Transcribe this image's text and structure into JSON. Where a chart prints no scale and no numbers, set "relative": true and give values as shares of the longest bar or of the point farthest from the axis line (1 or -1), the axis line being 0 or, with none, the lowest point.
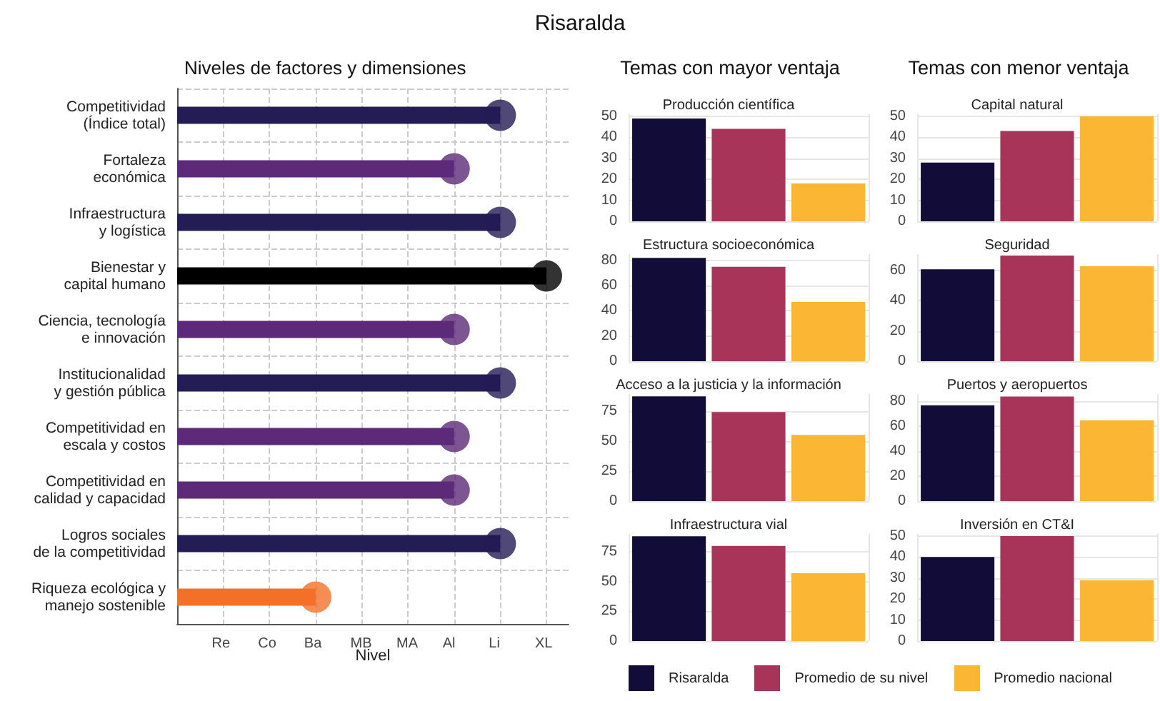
{
  "chart_data": [
    {
      "type": "lollipop",
      "orientation": "horizontal",
      "title": "Risaralda",
      "subtitle": "Niveles de factores y dimensiones",
      "xlabel": "Nivel",
      "categories": [
        "Competitividad\n(Índice total)",
        "Fortaleza\neconómica",
        "Infraestructura\ny logística",
        "Bienestar y\ncapital humano",
        "Ciencia, tecnología\ne innovación",
        "Institucionalidad\ny gestión pública",
        "Competitividad en\nescala y costos",
        "Competitividad en\ncalidad y capacidad",
        "Logros sociales\nde la competitividad",
        "Riqueza ecológica y\nmanejo sostenible"
      ],
      "values": [
        0.875,
        0.75,
        0.875,
        1,
        0.75,
        0.875,
        0.75,
        0.75,
        0.875,
        0.375
      ],
      "relative": true,
      "colors": [
        "#241c55",
        "#5c2a78",
        "#241c55",
        "#000000",
        "#5c2a78",
        "#241c55",
        "#5c2a78",
        "#5c2a78",
        "#241c55",
        "#f37029"
      ],
      "annotations": [
        "Re",
        "Co",
        "Ba",
        "MB",
        "MA",
        "Al",
        "Li",
        "XL"
      ],
      "marker": "circle",
      "grid": true
    },
    {
      "type": "bar",
      "title": "Temas con mayor ventaja",
      "subtitle": "Producción científica",
      "categories": [
        null
      ],
      "series": [
        {
          "color": "#120c38",
          "values": [
            49
          ]
        },
        {
          "color": "#a8345a",
          "values": [
            44
          ]
        },
        {
          "color": "#fbb634",
          "values": [
            18
          ]
        }
      ],
      "ylim": [
        0,
        51
      ],
      "yticks": [
        0,
        10,
        20,
        30,
        40,
        50
      ],
      "grid": true
    },
    {
      "type": "bar",
      "title": "Estructura socioeconómica",
      "categories": [
        null
      ],
      "series": [
        {
          "color": "#120c38",
          "values": [
            82
          ]
        },
        {
          "color": "#a8345a",
          "values": [
            75
          ]
        },
        {
          "color": "#fbb634",
          "values": [
            47
          ]
        }
      ],
      "ylim": [
        0,
        85
      ],
      "yticks": [
        0,
        20,
        40,
        60,
        80
      ],
      "grid": true
    },
    {
      "type": "bar",
      "title": "Acceso a la justicia y la información",
      "categories": [
        null
      ],
      "series": [
        {
          "color": "#120c38",
          "values": [
            87
          ]
        },
        {
          "color": "#a8345a",
          "values": [
            74
          ]
        },
        {
          "color": "#fbb634",
          "values": [
            55
          ]
        }
      ],
      "ylim": [
        0,
        89
      ],
      "yticks": [
        0,
        25,
        50,
        75
      ],
      "grid": true
    },
    {
      "type": "bar",
      "title": "Infraestructura vial",
      "categories": [
        null
      ],
      "series": [
        {
          "color": "#120c38",
          "values": [
            88
          ]
        },
        {
          "color": "#a8345a",
          "values": [
            80
          ]
        },
        {
          "color": "#fbb634",
          "values": [
            57
          ]
        }
      ],
      "ylim": [
        0,
        90
      ],
      "yticks": [
        0,
        25,
        50,
        75
      ],
      "grid": true
    },
    {
      "type": "bar",
      "title": "Temas con menor ventaja",
      "subtitle": "Capital natural",
      "categories": [
        null
      ],
      "series": [
        {
          "color": "#120c38",
          "values": [
            28
          ]
        },
        {
          "color": "#a8345a",
          "values": [
            43
          ]
        },
        {
          "color": "#fbb634",
          "values": [
            50
          ]
        }
      ],
      "ylim": [
        0,
        51
      ],
      "yticks": [
        0,
        10,
        20,
        30,
        40,
        50
      ],
      "grid": true
    },
    {
      "type": "bar",
      "title": "Seguridad",
      "categories": [
        null
      ],
      "series": [
        {
          "color": "#120c38",
          "values": [
            61
          ]
        },
        {
          "color": "#a8345a",
          "values": [
            70
          ]
        },
        {
          "color": "#fbb634",
          "values": [
            63
          ]
        }
      ],
      "ylim": [
        0,
        71
      ],
      "yticks": [
        0,
        20,
        40,
        60
      ],
      "grid": true
    },
    {
      "type": "bar",
      "title": "Puertos y aeropuertos",
      "categories": [
        null
      ],
      "series": [
        {
          "color": "#120c38",
          "values": [
            77
          ]
        },
        {
          "color": "#a8345a",
          "values": [
            84
          ]
        },
        {
          "color": "#fbb634",
          "values": [
            65
          ]
        }
      ],
      "ylim": [
        0,
        86
      ],
      "yticks": [
        0,
        20,
        40,
        60,
        80
      ],
      "grid": true
    },
    {
      "type": "bar",
      "title": "Inversión en CT&I",
      "categories": [
        null
      ],
      "series": [
        {
          "name": "Risaralda",
          "color": "#120c38",
          "values": [
            40
          ]
        },
        {
          "name": "Promedio de su nivel",
          "color": "#a8345a",
          "values": [
            50
          ]
        },
        {
          "name": "Promedio nacional",
          "color": "#fbb634",
          "values": [
            29
          ]
        }
      ],
      "ylim": [
        0,
        51
      ],
      "yticks": [
        0,
        10,
        20,
        30,
        40,
        50
      ],
      "grid": true,
      "legend": "bottom"
    }
  ]
}
